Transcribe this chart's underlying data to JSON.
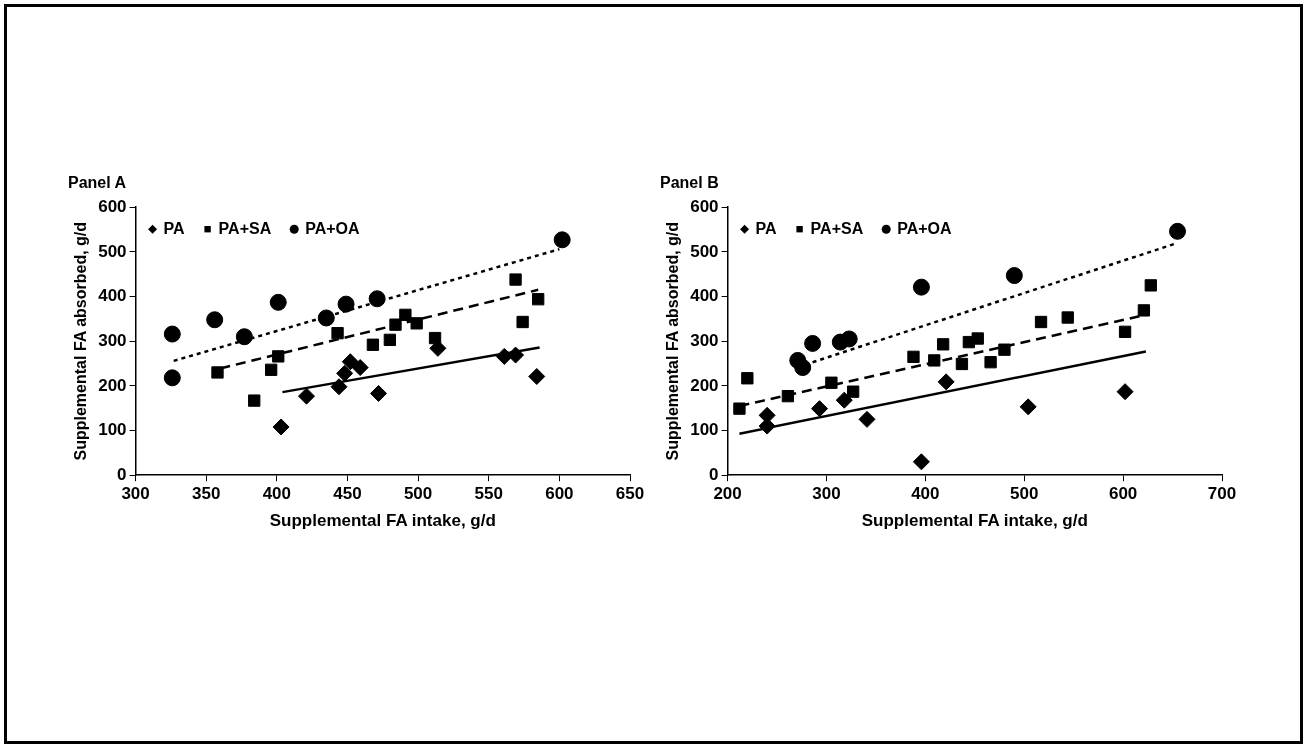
{
  "chart_data": [
    {
      "type": "scatter",
      "title": "Panel A",
      "xlabel": "Supplemental FA intake, g/d",
      "ylabel": "Supplemental FA absorbed, g/d",
      "xlim": [
        300,
        650
      ],
      "xticks": [
        300,
        350,
        400,
        450,
        500,
        550,
        600,
        650
      ],
      "ylim": [
        0,
        600
      ],
      "yticks": [
        0,
        100,
        200,
        300,
        400,
        500,
        600
      ],
      "legend": "top left",
      "grid": false,
      "series": [
        {
          "name": "PA",
          "color": "#000000",
          "marker": "diamond",
          "x": [
            403,
            421,
            444,
            448,
            452,
            459,
            472,
            514,
            561,
            569,
            584
          ],
          "values": [
            108,
            177,
            198,
            228,
            254,
            241,
            183,
            284,
            266,
            269,
            221
          ]
        },
        {
          "name": "PA+SA",
          "color": "#000000",
          "marker": "square",
          "x": [
            358,
            384,
            396,
            401,
            443,
            468,
            480,
            484,
            491,
            499,
            512,
            569,
            574,
            585
          ],
          "values": [
            230,
            167,
            236,
            266,
            318,
            292,
            303,
            337,
            359,
            340,
            307,
            438,
            343,
            394
          ]
        },
        {
          "name": "PA+OA",
          "color": "#000000",
          "marker": "circle",
          "x": [
            326,
            326,
            356,
            377,
            401,
            435,
            449,
            471,
            602
          ],
          "values": [
            316,
            218,
            348,
            310,
            387,
            352,
            383,
            395,
            527
          ]
        },
        {
          "type": "line",
          "color": "#000000",
          "marker": "none",
          "line_style": "solid",
          "x": [
            404,
            586
          ],
          "values": [
            186,
            286
          ]
        },
        {
          "type": "line",
          "color": "#000000",
          "marker": "none",
          "line_style": "dashed",
          "x": [
            360,
            585
          ],
          "values": [
            239,
            415
          ]
        },
        {
          "type": "line",
          "color": "#000000",
          "marker": "none",
          "line_style": "dotted",
          "x": [
            327,
            600
          ],
          "values": [
            256,
            506
          ]
        }
      ]
    },
    {
      "type": "scatter",
      "title": "Panel B",
      "xlabel": "Supplemental FA intake, g/d",
      "ylabel": "Supplemental FA absorbed, g/d",
      "xlim": [
        200,
        700
      ],
      "xticks": [
        200,
        300,
        400,
        500,
        600,
        700
      ],
      "ylim": [
        0,
        600
      ],
      "yticks": [
        0,
        100,
        200,
        300,
        400,
        500,
        600
      ],
      "legend": "top left",
      "grid": false,
      "series": [
        {
          "name": "PA",
          "color": "#000000",
          "marker": "diamond",
          "x": [
            240,
            240,
            293,
            318,
            341,
            396,
            421,
            504,
            602
          ],
          "values": [
            110,
            134,
            149,
            168,
            125,
            30,
            209,
            153,
            187
          ]
        },
        {
          "name": "PA+SA",
          "color": "#000000",
          "marker": "square",
          "x": [
            212,
            220,
            261,
            305,
            327,
            388,
            409,
            418,
            437,
            444,
            453,
            466,
            480,
            517,
            544,
            602,
            621,
            628
          ],
          "values": [
            149,
            217,
            177,
            207,
            187,
            265,
            257,
            293,
            249,
            298,
            306,
            253,
            281,
            343,
            353,
            321,
            369,
            425
          ]
        },
        {
          "name": "PA+OA",
          "color": "#000000",
          "marker": "circle",
          "x": [
            271,
            276,
            286,
            314,
            323,
            396,
            490,
            655
          ],
          "values": [
            257,
            241,
            295,
            298,
            305,
            421,
            447,
            546
          ]
        },
        {
          "type": "line",
          "color": "#000000",
          "marker": "none",
          "line_style": "solid",
          "x": [
            212,
            623
          ],
          "values": [
            93,
            277
          ]
        },
        {
          "type": "line",
          "color": "#000000",
          "marker": "none",
          "line_style": "dashed",
          "x": [
            212,
            623
          ],
          "values": [
            155,
            359
          ]
        },
        {
          "type": "line",
          "color": "#000000",
          "marker": "none",
          "line_style": "dotted",
          "x": [
            286,
            655
          ],
          "values": [
            253,
            520
          ]
        }
      ]
    }
  ]
}
